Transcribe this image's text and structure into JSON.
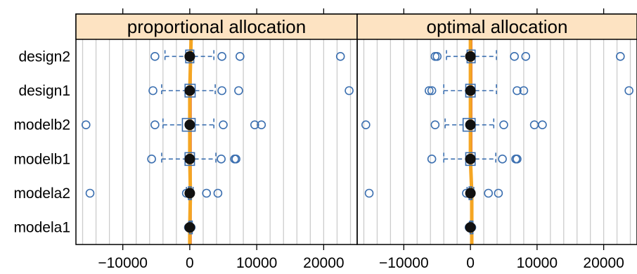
{
  "colors": {
    "strip_background": "#fde3c2",
    "grid_line": "#cccccc",
    "box": "#3b6fb0",
    "outlier": "#3b6fb0",
    "mean_dot": "#111111",
    "reference_line": "#d9534f",
    "mean_trace": "#f5a623"
  },
  "chart_data": {
    "type": "box",
    "panels": [
      {
        "title": "proportional allocation",
        "series": [
          {
            "name": "design2",
            "q1": -600,
            "median": 0,
            "q3": 600,
            "whisker_low": -3700,
            "whisker_high": 3600,
            "mean": 200,
            "outliers": [
              -5200,
              4800,
              7500,
              22500
            ]
          },
          {
            "name": "design1",
            "q1": -700,
            "median": 0,
            "q3": 800,
            "whisker_low": -4200,
            "whisker_high": 3800,
            "mean": 0,
            "outliers": [
              -5500,
              4800,
              7300,
              23800
            ]
          },
          {
            "name": "modelb2",
            "q1": -1100,
            "median": 0,
            "q3": 800,
            "whisker_low": -4000,
            "whisker_high": 3600,
            "mean": 0,
            "outliers": [
              -15500,
              -5200,
              5000,
              9700,
              10700
            ]
          },
          {
            "name": "modelb1",
            "q1": -700,
            "median": 0,
            "q3": 700,
            "whisker_low": -4200,
            "whisker_high": 3900,
            "mean": 0,
            "outliers": [
              -5700,
              4700,
              6700,
              6900
            ]
          },
          {
            "name": "modela2",
            "q1": -200,
            "median": 0,
            "q3": 200,
            "whisker_low": -500,
            "whisker_high": 500,
            "mean": 100,
            "outliers": [
              -500,
              2500,
              4200,
              -14900
            ]
          },
          {
            "name": "modela1",
            "q1": -50,
            "median": 0,
            "q3": 50,
            "whisker_low": -150,
            "whisker_high": 150,
            "mean": 0,
            "outliers": [
              -200,
              200
            ]
          }
        ]
      },
      {
        "title": "optimal allocation",
        "series": [
          {
            "name": "design2",
            "q1": -500,
            "median": 0,
            "q3": 700,
            "whisker_low": -3600,
            "whisker_high": 3900,
            "mean": 0,
            "outliers": [
              -5300,
              -5000,
              6600,
              8300,
              22500
            ]
          },
          {
            "name": "design1",
            "q1": -700,
            "median": 0,
            "q3": 700,
            "whisker_low": -4000,
            "whisker_high": 3900,
            "mean": 0,
            "outliers": [
              -6200,
              -5800,
              7000,
              8000,
              23800
            ]
          },
          {
            "name": "modelb2",
            "q1": -1100,
            "median": 0,
            "q3": 700,
            "whisker_low": -3800,
            "whisker_high": 3500,
            "mean": 0,
            "outliers": [
              -15700,
              -5300,
              5000,
              9600,
              10800
            ]
          },
          {
            "name": "modelb1",
            "q1": -700,
            "median": 0,
            "q3": 700,
            "whisker_low": -4000,
            "whisker_high": 3800,
            "mean": 0,
            "outliers": [
              -5800,
              4800,
              6800,
              7000
            ]
          },
          {
            "name": "modela2",
            "q1": -200,
            "median": 0,
            "q3": 200,
            "whisker_low": -500,
            "whisker_high": 500,
            "mean": 200,
            "outliers": [
              -600,
              2700,
              4200,
              -15200
            ]
          },
          {
            "name": "modela1",
            "q1": -50,
            "median": 0,
            "q3": 50,
            "whisker_low": -150,
            "whisker_high": 150,
            "mean": 200,
            "outliers": [
              -200,
              200
            ]
          }
        ]
      }
    ],
    "categories": [
      "design2",
      "design1",
      "modelb2",
      "modelb1",
      "modela2",
      "modela1"
    ],
    "x_ticks": [
      -10000,
      0,
      10000,
      20000
    ],
    "x_tick_labels": [
      "−10000",
      "0",
      "10000",
      "20000"
    ],
    "xlim": [
      -17000,
      25000
    ],
    "vertical_grid_step": 2000,
    "reference_line_x": 200,
    "grid": true
  }
}
